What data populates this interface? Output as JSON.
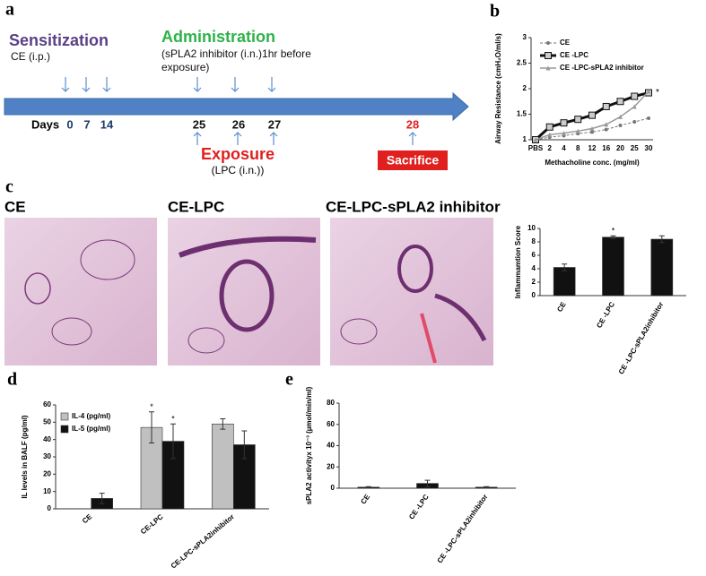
{
  "panel_labels": [
    "a",
    "b",
    "c",
    "d",
    "e"
  ],
  "timeline": {
    "sensitization": "Sensitization",
    "sensitization_route": "CE (i.p.)",
    "administration": "Administration",
    "administration_note_1": "(sPLA2 inhibitor (i.n.)1hr before",
    "administration_note_2": "exposure)",
    "days_label": "Days",
    "days": [
      "0",
      "7",
      "14",
      "25",
      "26",
      "27",
      "28"
    ],
    "exposure": "Exposure",
    "exposure_route": "(LPC (i.n.))",
    "sacrifice": "Sacrifice"
  },
  "histology": {
    "titles": [
      "CE",
      "CE-LPC",
      "CE-LPC-sPLA2 inhibitor"
    ]
  },
  "chart_data": [
    {
      "type": "line",
      "y_label": "Airway Resistance (cmH₂O/ml/s)",
      "x_label": "Methacholine conc. (mg/ml)",
      "categories": [
        "PBS",
        "2",
        "4",
        "8",
        "12",
        "16",
        "20",
        "25",
        "30"
      ],
      "ylim": [
        1,
        3
      ],
      "yticks": [
        1,
        1.5,
        2,
        2.5,
        3
      ],
      "series": [
        {
          "name": "CE",
          "color": "#777777",
          "values": [
            1,
            1.05,
            1.08,
            1.12,
            1.15,
            1.2,
            1.28,
            1.35,
            1.42
          ]
        },
        {
          "name": "CE -LPC",
          "color": "#111111",
          "values": [
            1,
            1.25,
            1.33,
            1.4,
            1.48,
            1.65,
            1.75,
            1.85,
            1.92
          ]
        },
        {
          "name": "CE -LPC-sPLA2 inhibitor",
          "color": "#999999",
          "values": [
            1,
            1.1,
            1.13,
            1.17,
            1.22,
            1.3,
            1.45,
            1.65,
            1.95
          ]
        }
      ],
      "annotations": [
        {
          "text": "*",
          "series": 1
        }
      ]
    },
    {
      "type": "bar",
      "y_label": "Inflammamtion Score",
      "categories": [
        "CE",
        "CE -LPC",
        "CE -LPC-sPLA2inhibitor"
      ],
      "ylim": [
        0,
        10
      ],
      "yticks": [
        0,
        2,
        4,
        6,
        8,
        10
      ],
      "series": [
        {
          "color": "#111111",
          "values": [
            4.2,
            8.7,
            8.4
          ],
          "errors": [
            0.5,
            0.2,
            0.5
          ]
        }
      ],
      "annotations": [
        {
          "text": "*",
          "category": 1,
          "series": 0
        }
      ]
    },
    {
      "type": "bar",
      "y_label": "IL levels  in BALF (pg/ml)",
      "categories": [
        "CE",
        "CE-LPC",
        "CE-LPC-sPLA2inhibitor"
      ],
      "ylim": [
        0,
        60
      ],
      "yticks": [
        0,
        10,
        20,
        30,
        40,
        50,
        60
      ],
      "series": [
        {
          "name": "IL-4 (pg/ml)",
          "color": "#c0c0c0",
          "values": [
            0,
            47,
            49
          ],
          "errors": [
            0,
            9,
            3
          ]
        },
        {
          "name": "IL-5 (pg/ml)",
          "color": "#111111",
          "values": [
            6,
            39,
            37
          ],
          "errors": [
            3,
            10,
            8
          ]
        }
      ],
      "annotations": [
        {
          "text": "*",
          "category": 1,
          "series": 0
        },
        {
          "text": "*",
          "category": 1,
          "series": 1
        }
      ]
    },
    {
      "type": "bar",
      "y_label": "sPLA2 activityx 10⁻³ (µmol/min/ml)",
      "categories": [
        "CE",
        "CE -LPC",
        "CE -LPC-sPLA2inhibitor"
      ],
      "ylim": [
        0,
        80
      ],
      "yticks": [
        0,
        20,
        40,
        60,
        80
      ],
      "series": [
        {
          "color": "#111111",
          "values": [
            1,
            4.5,
            1
          ],
          "errors": [
            0.5,
            3,
            0.5
          ]
        }
      ]
    }
  ]
}
